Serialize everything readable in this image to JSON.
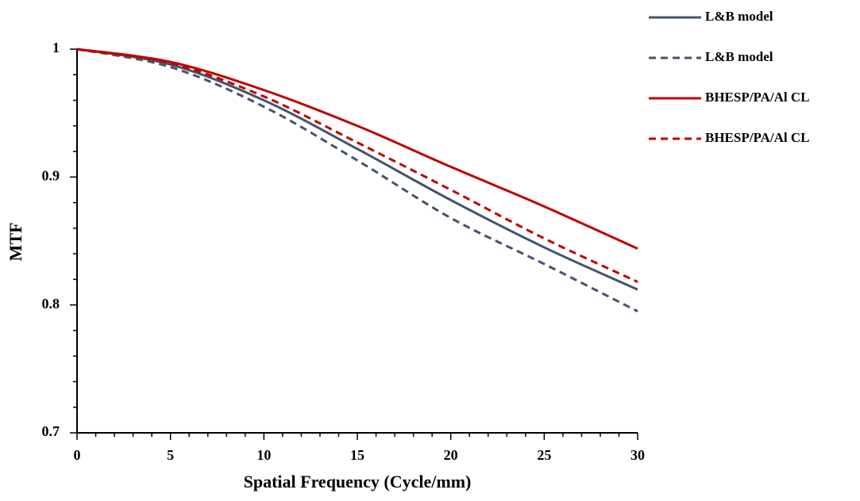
{
  "chart_data": {
    "type": "line",
    "x_label": "Spatial Frequency (Cycle/mm)",
    "y_label": "MTF",
    "x": [
      0,
      5,
      10,
      15,
      20,
      25,
      30
    ],
    "series": [
      {
        "name": "L&B model",
        "color": "#44546a",
        "dash": "solid",
        "values": [
          1,
          0.988,
          0.96,
          0.922,
          0.882,
          0.845,
          0.812
        ]
      },
      {
        "name": "L&B model",
        "color": "#44546a",
        "dash": "dashed",
        "values": [
          1,
          0.986,
          0.955,
          0.913,
          0.868,
          0.832,
          0.795
        ]
      },
      {
        "name": "BHESP/PA/Al CL",
        "color": "#c00000",
        "dash": "solid",
        "values": [
          1,
          0.99,
          0.968,
          0.94,
          0.908,
          0.877,
          0.844
        ]
      },
      {
        "name": "BHESP/PA/Al CL",
        "color": "#c00000",
        "dash": "dashed",
        "values": [
          1,
          0.989,
          0.963,
          0.927,
          0.89,
          0.852,
          0.818
        ]
      }
    ],
    "xlim": [
      0,
      30
    ],
    "xticks": [
      0,
      5,
      10,
      15,
      20,
      25,
      30
    ],
    "ylim": [
      0.7,
      1
    ],
    "yticks": [
      0.7,
      0.8,
      0.9,
      1
    ],
    "legend": "top-right"
  }
}
